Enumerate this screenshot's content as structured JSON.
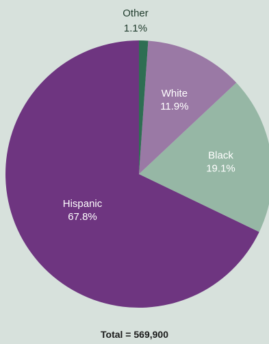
{
  "chart_data": {
    "type": "pie",
    "slices": [
      {
        "label": "Hispanic",
        "value": 67.8,
        "display": "67.8%",
        "color": "#6e3580"
      },
      {
        "label": "Black",
        "value": 19.1,
        "display": "19.1%",
        "color": "#96b7a5"
      },
      {
        "label": "White",
        "value": 11.9,
        "display": "11.9%",
        "color": "#9a79a5"
      },
      {
        "label": "Other",
        "value": 1.1,
        "display": "1.1%",
        "color": "#2e6e53"
      }
    ],
    "start_angle_deg": 0,
    "direction": "counterclockwise",
    "footnote": "Total = 569,900"
  }
}
